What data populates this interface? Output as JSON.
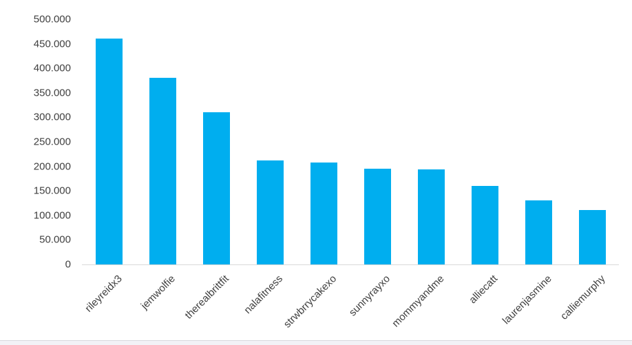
{
  "chart_data": {
    "type": "bar",
    "title": "",
    "xlabel": "",
    "ylabel": "",
    "categories": [
      "rileyreidx3",
      "jemwolfie",
      "therealbrittfit",
      "nalafitness",
      "strwbrrycakexo",
      "sunnyrayxo",
      "mommyandme",
      "alliecatt",
      "laurenjasmine",
      "calliemurphy"
    ],
    "values": [
      460000,
      380000,
      310000,
      212000,
      208000,
      195000,
      194000,
      160000,
      130000,
      111000
    ],
    "ylim": [
      0,
      500000
    ],
    "ytick_values": [
      500000,
      450000,
      400000,
      350000,
      300000,
      250000,
      200000,
      150000,
      100000,
      50000,
      0
    ],
    "ytick_labels": [
      "500.000",
      "450.000",
      "400.000",
      "350.000",
      "300.000",
      "250.000",
      "200.000",
      "150.000",
      "100.000",
      "50.000",
      "0"
    ],
    "grid": "off",
    "legend": "none",
    "xtick_rotation_deg": 45
  },
  "theme": {
    "bar_color": "#00aeef",
    "axis_line_color": "#d9d9d9",
    "tick_label_color": "#404040",
    "background_color": "#ffffff",
    "footer_color": "#f2f2f6",
    "footer_border_color": "#d9d9de"
  }
}
